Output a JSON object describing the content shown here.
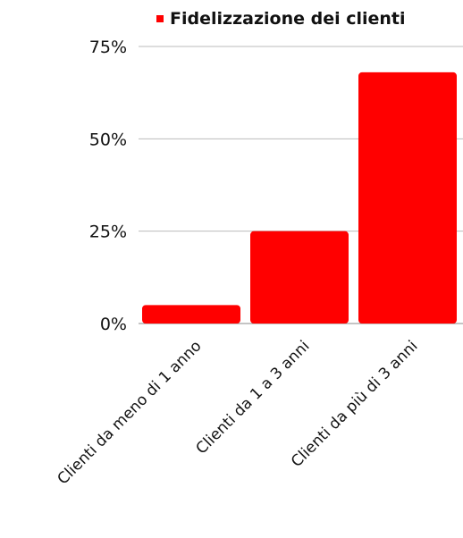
{
  "chart_data": {
    "type": "bar",
    "title": "",
    "xlabel": "",
    "ylabel": "",
    "categories": [
      "Clienti da meno di 1 anno",
      "Clienti da 1 a 3 anni",
      "Clienti da più di 3 anni"
    ],
    "series": [
      {
        "name": "Fidelizzazione dei clienti",
        "values": [
          5,
          25,
          68
        ],
        "color": "#ff0000"
      }
    ],
    "ylim": [
      0,
      75
    ],
    "yticks": [
      0,
      25,
      50,
      75
    ],
    "ytick_labels": [
      "0%",
      "25%",
      "50%",
      "75%"
    ],
    "grid": true,
    "legend_position": "top-right"
  }
}
